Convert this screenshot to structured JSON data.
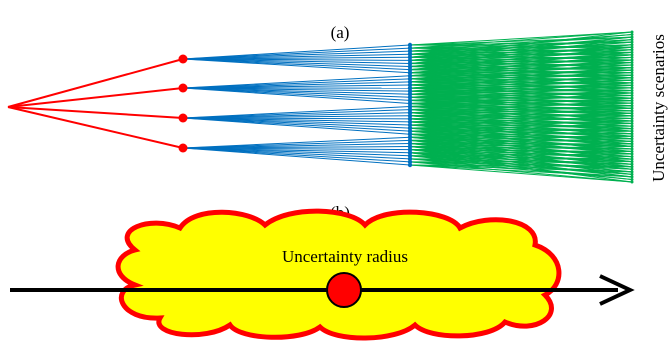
{
  "panel_a": {
    "label": "(a)",
    "side_label": "Uncertainty scenarios"
  },
  "panel_b": {
    "label": "(b)",
    "cloud_label": "Uncertainty radius"
  }
}
